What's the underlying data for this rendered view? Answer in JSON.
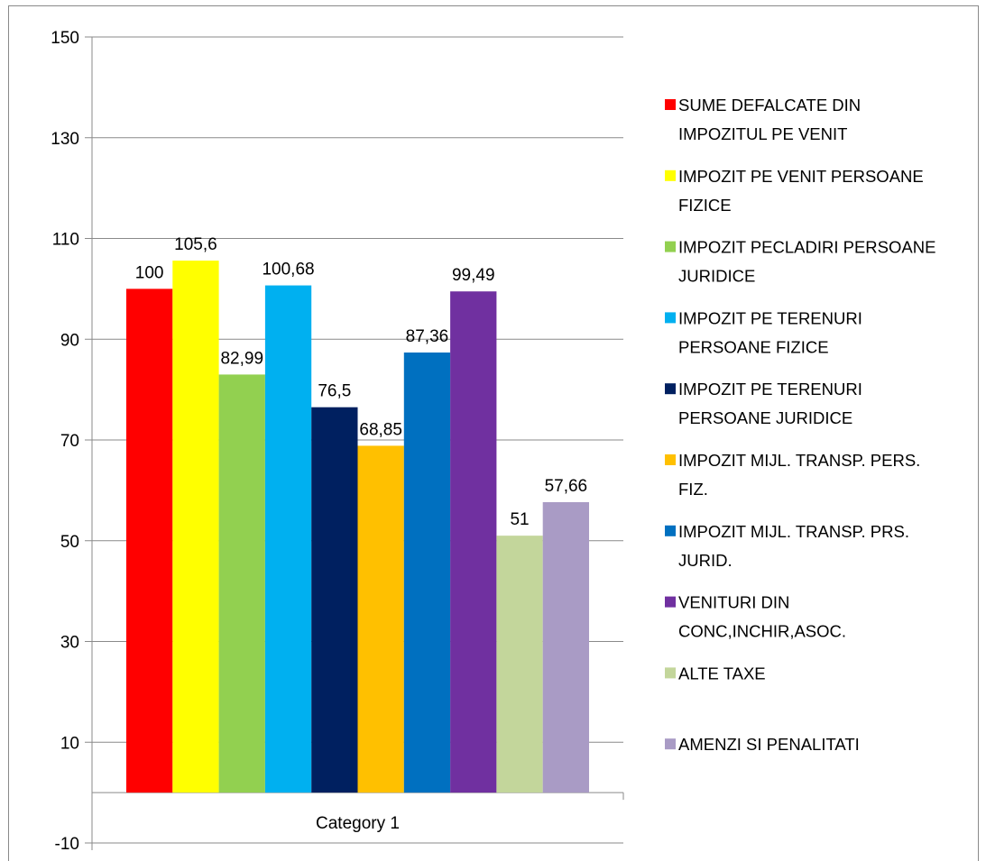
{
  "chart_data": {
    "type": "bar",
    "categories": [
      "Category 1"
    ],
    "ylim": [
      -10,
      150
    ],
    "yticks": [
      -10,
      10,
      30,
      50,
      70,
      90,
      110,
      130,
      150
    ],
    "grid": true,
    "legend_position": "right",
    "series": [
      {
        "name": "SUME DEFALCATE DIN IMPOZITUL PE VENIT",
        "name_lines": [
          "SUME DEFALCATE DIN",
          "IMPOZITUL PE VENIT"
        ],
        "color": "#ff0000",
        "values": [
          100
        ],
        "label": "100"
      },
      {
        "name": "IMPOZIT PE VENIT PERSOANE FIZICE",
        "name_lines": [
          "IMPOZIT PE VENIT PERSOANE",
          "FIZICE"
        ],
        "color": "#ffff00",
        "values": [
          105.6
        ],
        "label": "105,6"
      },
      {
        "name": "IMPOZIT PECLADIRI PERSOANE JURIDICE",
        "name_lines": [
          "IMPOZIT PECLADIRI PERSOANE",
          "JURIDICE"
        ],
        "color": "#92d050",
        "values": [
          82.99
        ],
        "label": "82,99"
      },
      {
        "name": "IMPOZIT PE TERENURI PERSOANE FIZICE",
        "name_lines": [
          "IMPOZIT PE TERENURI",
          "PERSOANE FIZICE"
        ],
        "color": "#00b0f0",
        "values": [
          100.68
        ],
        "label": "100,68"
      },
      {
        "name": "IMPOZIT PE TERENURI PERSOANE JURIDICE",
        "name_lines": [
          "IMPOZIT PE TERENURI",
          "PERSOANE JURIDICE"
        ],
        "color": "#002060",
        "values": [
          76.5
        ],
        "label": "76,5"
      },
      {
        "name": "IMPOZIT MIJL. TRANSP. PERS. FIZ.",
        "name_lines": [
          "IMPOZIT MIJL. TRANSP. PERS.",
          "FIZ."
        ],
        "color": "#ffc000",
        "values": [
          68.85
        ],
        "label": "68,85"
      },
      {
        "name": "IMPOZIT MIJL. TRANSP. PRS. JURID.",
        "name_lines": [
          "IMPOZIT MIJL. TRANSP. PRS.",
          "JURID."
        ],
        "color": "#0070c0",
        "values": [
          87.36
        ],
        "label": "87,36"
      },
      {
        "name": "VENITURI DIN CONC,INCHIR,ASOC.",
        "name_lines": [
          "VENITURI DIN",
          "CONC,INCHIR,ASOC."
        ],
        "color": "#7030a0",
        "values": [
          99.49
        ],
        "label": "99,49"
      },
      {
        "name": "ALTE TAXE",
        "name_lines": [
          "ALTE TAXE"
        ],
        "color": "#c3d69b",
        "values": [
          51
        ],
        "label": "51"
      },
      {
        "name": "AMENZI SI PENALITATI",
        "name_lines": [
          "AMENZI SI PENALITATI"
        ],
        "color": "#a99bc5",
        "values": [
          57.66
        ],
        "label": "57,66"
      }
    ]
  }
}
